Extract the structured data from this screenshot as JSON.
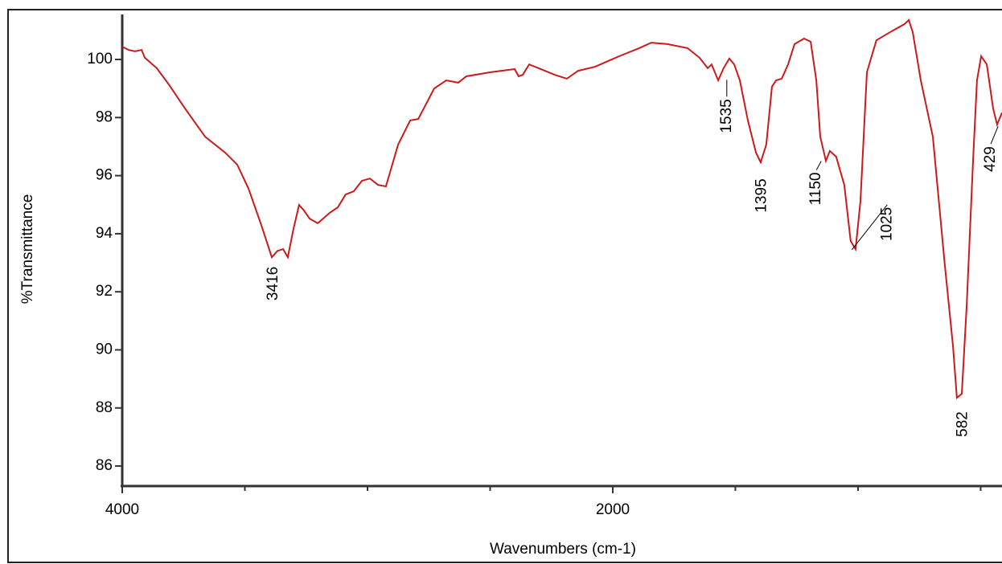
{
  "chart_data": {
    "type": "line",
    "x_label": "Wavenumbers (cm-1)",
    "y_label": "%Transmittance",
    "xlim": [
      4000,
      413
    ],
    "ylim": [
      85.31,
      101.55
    ],
    "xticks": [
      4000,
      2000
    ],
    "xminorticks": [
      3500,
      3000,
      2500,
      1500,
      1000,
      500
    ],
    "yticks": [
      86,
      88,
      90,
      92,
      94,
      96,
      98,
      100
    ],
    "x": [
      4000,
      3974,
      3948,
      3921,
      3908,
      3859,
      3810,
      3744,
      3662,
      3580,
      3531,
      3485,
      3433,
      3390,
      3367,
      3344,
      3325,
      3302,
      3279,
      3259,
      3236,
      3203,
      3154,
      3121,
      3089,
      3056,
      3023,
      2990,
      2957,
      2925,
      2875,
      2826,
      2793,
      2728,
      2679,
      2630,
      2597,
      2498,
      2400,
      2384,
      2367,
      2341,
      2302,
      2236,
      2187,
      2141,
      2072,
      1974,
      1892,
      1843,
      1777,
      1695,
      1646,
      1613,
      1597,
      1570,
      1548,
      1525,
      1505,
      1482,
      1449,
      1416,
      1397,
      1374,
      1351,
      1334,
      1311,
      1285,
      1259,
      1220,
      1193,
      1170,
      1154,
      1131,
      1115,
      1089,
      1056,
      1030,
      1010,
      990,
      964,
      925,
      859,
      810,
      793,
      777,
      744,
      695,
      646,
      613,
      597,
      577,
      557,
      531,
      515,
      498,
      475,
      449,
      433,
      413
    ],
    "series": [
      {
        "color": "#cc1a1a",
        "values": [
          100.44,
          100.33,
          100.28,
          100.33,
          100.06,
          99.7,
          99.14,
          98.31,
          97.34,
          96.79,
          96.38,
          95.55,
          94.3,
          93.19,
          93.41,
          93.47,
          93.19,
          94.16,
          94.99,
          94.8,
          94.52,
          94.36,
          94.72,
          94.91,
          95.35,
          95.46,
          95.82,
          95.9,
          95.68,
          95.63,
          97.07,
          97.9,
          97.95,
          99.0,
          99.28,
          99.2,
          99.42,
          99.56,
          99.67,
          99.42,
          99.47,
          99.83,
          99.7,
          99.47,
          99.34,
          99.61,
          99.75,
          100.11,
          100.39,
          100.58,
          100.53,
          100.39,
          100.06,
          99.7,
          99.83,
          99.28,
          99.7,
          100.03,
          99.83,
          99.28,
          97.9,
          96.79,
          96.46,
          97.07,
          99.06,
          99.28,
          99.34,
          99.83,
          100.53,
          100.72,
          100.61,
          99.28,
          97.34,
          96.51,
          96.85,
          96.65,
          95.68,
          93.75,
          93.47,
          95.13,
          99.56,
          100.66,
          100.99,
          101.22,
          101.36,
          100.94,
          99.28,
          97.34,
          92.92,
          90.15,
          88.35,
          88.49,
          91.53,
          96.51,
          99.28,
          100.11,
          99.83,
          98.31,
          97.76,
          98.17
        ]
      }
    ],
    "annotations": [
      {
        "text": "3416",
        "x": 3416,
        "y": 93.2
      },
      {
        "text": "1535",
        "x": 1535,
        "y": 99.3
      },
      {
        "text": "1395",
        "x": 1395,
        "y": 96.45
      },
      {
        "text": "1150",
        "x": 1150,
        "y": 96.5
      },
      {
        "text": "1025",
        "x": 1025,
        "y": 93.45
      },
      {
        "text": "582",
        "x": 582,
        "y": 88.35
      },
      {
        "text": "429",
        "x": 429,
        "y": 97.7
      }
    ]
  }
}
